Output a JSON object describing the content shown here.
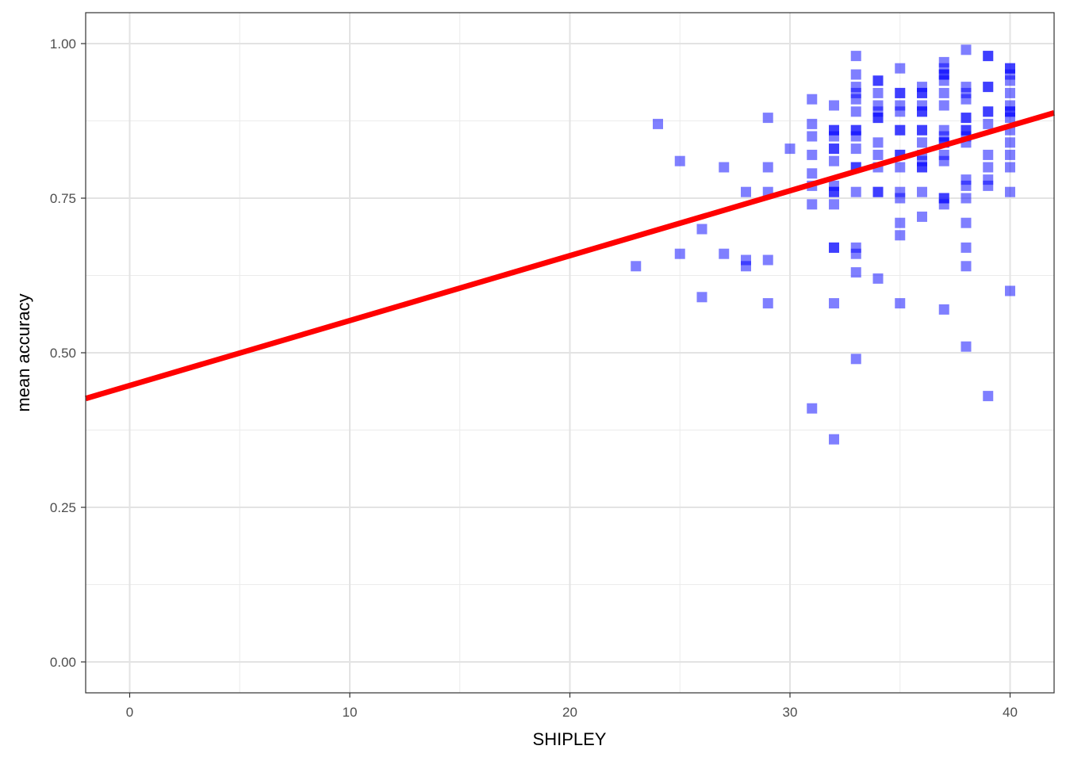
{
  "chart_data": {
    "type": "scatter",
    "title": "",
    "xlabel": "SHIPLEY",
    "ylabel": "mean accuracy",
    "xlim": [
      -2,
      42
    ],
    "ylim": [
      -0.05,
      1.05
    ],
    "x_ticks": [
      0,
      10,
      20,
      30,
      40
    ],
    "x_tick_labels": [
      "0",
      "10",
      "20",
      "30",
      "40"
    ],
    "y_ticks": [
      0,
      0.25,
      0.5,
      0.75,
      1.0
    ],
    "y_tick_labels": [
      "0.00",
      "0.25",
      "0.50",
      "0.75",
      "1.00"
    ],
    "grid": true,
    "legend": "none",
    "point_color": "#0000ff",
    "point_opacity": 0.5,
    "point_shape": "square",
    "trend_line": {
      "color": "#ff0000",
      "intercept": 0.447,
      "slope": 0.0105
    },
    "points": [
      [
        23,
        0.64
      ],
      [
        24,
        0.87
      ],
      [
        25,
        0.81
      ],
      [
        25,
        0.66
      ],
      [
        26,
        0.7
      ],
      [
        26,
        0.59
      ],
      [
        27,
        0.8
      ],
      [
        27,
        0.66
      ],
      [
        28,
        0.76
      ],
      [
        28,
        0.65
      ],
      [
        28,
        0.64
      ],
      [
        29,
        0.88
      ],
      [
        29,
        0.8
      ],
      [
        29,
        0.76
      ],
      [
        29,
        0.65
      ],
      [
        29,
        0.58
      ],
      [
        30,
        0.83
      ],
      [
        31,
        0.91
      ],
      [
        31,
        0.87
      ],
      [
        31,
        0.85
      ],
      [
        31,
        0.82
      ],
      [
        31,
        0.79
      ],
      [
        31,
        0.77
      ],
      [
        31,
        0.74
      ],
      [
        31,
        0.41
      ],
      [
        32,
        0.9
      ],
      [
        32,
        0.86
      ],
      [
        32,
        0.86
      ],
      [
        32,
        0.85
      ],
      [
        32,
        0.83
      ],
      [
        32,
        0.83
      ],
      [
        32,
        0.81
      ],
      [
        32,
        0.77
      ],
      [
        32,
        0.76
      ],
      [
        32,
        0.76
      ],
      [
        32,
        0.74
      ],
      [
        32,
        0.67
      ],
      [
        32,
        0.67
      ],
      [
        32,
        0.58
      ],
      [
        32,
        0.36
      ],
      [
        33,
        0.98
      ],
      [
        33,
        0.95
      ],
      [
        33,
        0.93
      ],
      [
        33,
        0.92
      ],
      [
        33,
        0.91
      ],
      [
        33,
        0.89
      ],
      [
        33,
        0.86
      ],
      [
        33,
        0.86
      ],
      [
        33,
        0.85
      ],
      [
        33,
        0.83
      ],
      [
        33,
        0.8
      ],
      [
        33,
        0.8
      ],
      [
        33,
        0.76
      ],
      [
        33,
        0.67
      ],
      [
        33,
        0.66
      ],
      [
        33,
        0.63
      ],
      [
        33,
        0.49
      ],
      [
        34,
        0.94
      ],
      [
        34,
        0.94
      ],
      [
        34,
        0.92
      ],
      [
        34,
        0.9
      ],
      [
        34,
        0.89
      ],
      [
        34,
        0.88
      ],
      [
        34,
        0.88
      ],
      [
        34,
        0.84
      ],
      [
        34,
        0.82
      ],
      [
        34,
        0.8
      ],
      [
        34,
        0.76
      ],
      [
        34,
        0.76
      ],
      [
        34,
        0.62
      ],
      [
        35,
        0.96
      ],
      [
        35,
        0.92
      ],
      [
        35,
        0.92
      ],
      [
        35,
        0.9
      ],
      [
        35,
        0.89
      ],
      [
        35,
        0.86
      ],
      [
        35,
        0.86
      ],
      [
        35,
        0.82
      ],
      [
        35,
        0.82
      ],
      [
        35,
        0.8
      ],
      [
        35,
        0.76
      ],
      [
        35,
        0.75
      ],
      [
        35,
        0.71
      ],
      [
        35,
        0.69
      ],
      [
        35,
        0.58
      ],
      [
        36,
        0.93
      ],
      [
        36,
        0.92
      ],
      [
        36,
        0.92
      ],
      [
        36,
        0.9
      ],
      [
        36,
        0.89
      ],
      [
        36,
        0.89
      ],
      [
        36,
        0.86
      ],
      [
        36,
        0.86
      ],
      [
        36,
        0.84
      ],
      [
        36,
        0.82
      ],
      [
        36,
        0.81
      ],
      [
        36,
        0.8
      ],
      [
        36,
        0.8
      ],
      [
        36,
        0.76
      ],
      [
        36,
        0.72
      ],
      [
        37,
        0.97
      ],
      [
        37,
        0.96
      ],
      [
        37,
        0.95
      ],
      [
        37,
        0.95
      ],
      [
        37,
        0.94
      ],
      [
        37,
        0.92
      ],
      [
        37,
        0.9
      ],
      [
        37,
        0.86
      ],
      [
        37,
        0.85
      ],
      [
        37,
        0.84
      ],
      [
        37,
        0.84
      ],
      [
        37,
        0.82
      ],
      [
        37,
        0.81
      ],
      [
        37,
        0.75
      ],
      [
        37,
        0.75
      ],
      [
        37,
        0.74
      ],
      [
        37,
        0.57
      ],
      [
        38,
        0.99
      ],
      [
        38,
        0.93
      ],
      [
        38,
        0.92
      ],
      [
        38,
        0.91
      ],
      [
        38,
        0.88
      ],
      [
        38,
        0.88
      ],
      [
        38,
        0.86
      ],
      [
        38,
        0.86
      ],
      [
        38,
        0.85
      ],
      [
        38,
        0.84
      ],
      [
        38,
        0.78
      ],
      [
        38,
        0.77
      ],
      [
        38,
        0.75
      ],
      [
        38,
        0.71
      ],
      [
        38,
        0.67
      ],
      [
        38,
        0.64
      ],
      [
        38,
        0.51
      ],
      [
        39,
        0.98
      ],
      [
        39,
        0.98
      ],
      [
        39,
        0.93
      ],
      [
        39,
        0.93
      ],
      [
        39,
        0.89
      ],
      [
        39,
        0.89
      ],
      [
        39,
        0.87
      ],
      [
        39,
        0.82
      ],
      [
        39,
        0.8
      ],
      [
        39,
        0.78
      ],
      [
        39,
        0.77
      ],
      [
        39,
        0.43
      ],
      [
        40,
        0.96
      ],
      [
        40,
        0.96
      ],
      [
        40,
        0.95
      ],
      [
        40,
        0.94
      ],
      [
        40,
        0.92
      ],
      [
        40,
        0.9
      ],
      [
        40,
        0.89
      ],
      [
        40,
        0.89
      ],
      [
        40,
        0.88
      ],
      [
        40,
        0.86
      ],
      [
        40,
        0.84
      ],
      [
        40,
        0.82
      ],
      [
        40,
        0.8
      ],
      [
        40,
        0.76
      ],
      [
        40,
        0.6
      ]
    ]
  }
}
